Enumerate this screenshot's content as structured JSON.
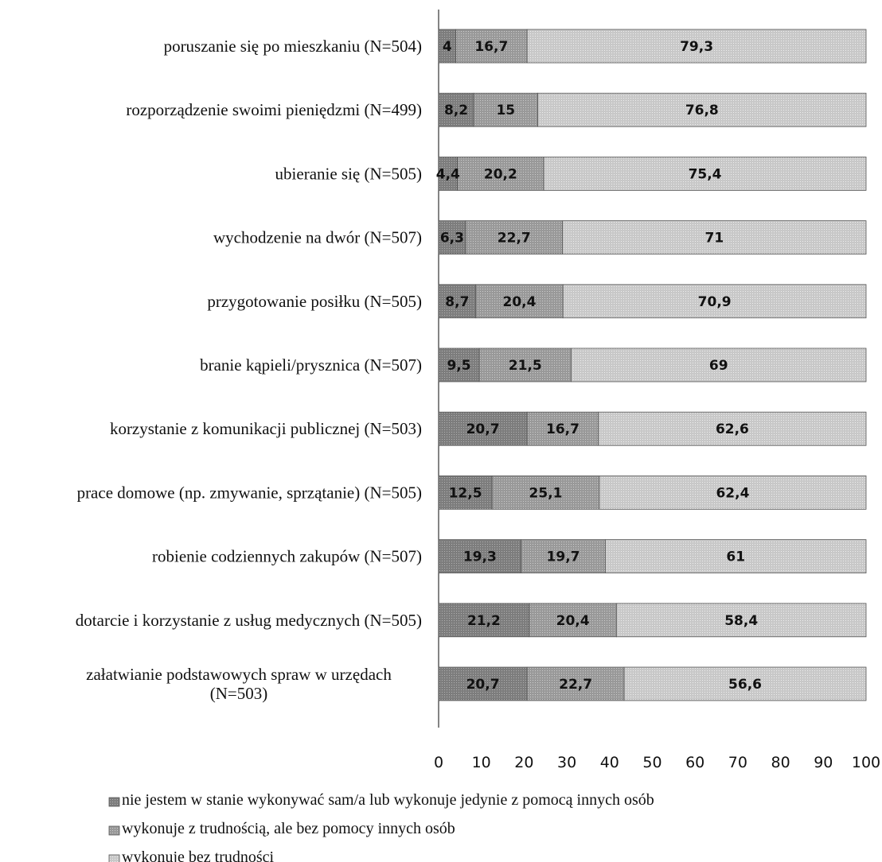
{
  "chart_data": {
    "type": "bar",
    "orientation": "horizontal",
    "stacked": true,
    "categories": [
      "poruszanie się po mieszkaniu (N=504)",
      "rozporządzenie swoimi pieniędzmi (N=499)",
      "ubieranie się (N=505)",
      "wychodzenie na dwór (N=507)",
      "przygotowanie posiłku (N=505)",
      "branie kąpieli/prysznica (N=507)",
      "korzystanie z komunikacji publicznej (N=503)",
      "prace domowe (np. zmywanie, sprzątanie) (N=505)",
      "robienie codziennych zakupów (N=507)",
      "dotarcie i korzystanie z usług medycznych (N=505)",
      "załatwianie podstawowych spraw w urzędach (N=503)"
    ],
    "category_lines": [
      [
        "poruszanie się po mieszkaniu (N=504)"
      ],
      [
        "rozporządzenie swoimi pieniędzmi (N=499)"
      ],
      [
        "ubieranie się (N=505)"
      ],
      [
        "wychodzenie na dwór (N=507)"
      ],
      [
        "przygotowanie posiłku (N=505)"
      ],
      [
        "branie kąpieli/prysznica (N=507)"
      ],
      [
        "korzystanie z komunikacji publicznej (N=503)"
      ],
      [
        "prace domowe (np. zmywanie, sprzątanie) (N=505)"
      ],
      [
        "robienie codziennych zakupów (N=507)"
      ],
      [
        "dotarcie i korzystanie z usług medycznych (N=505)"
      ],
      [
        "załatwianie podstawowych spraw w urzędach",
        "(N=503)"
      ]
    ],
    "series": [
      {
        "name": "nie jestem w stanie wykonywać sam/a lub wykonuje jedynie z pomocą innych osób",
        "color": "#8c8c8c",
        "values": [
          4,
          8.2,
          4.4,
          6.3,
          8.7,
          9.5,
          20.7,
          12.5,
          19.3,
          21.2,
          20.7
        ],
        "labels": [
          "4",
          "8,2",
          "4,4",
          "6,3",
          "8,7",
          "9,5",
          "20,7",
          "12,5",
          "19,3",
          "21,2",
          "20,7"
        ]
      },
      {
        "name": "wykonuje z trudnością, ale bez pomocy innych osób",
        "color": "#a6a6a6",
        "values": [
          16.7,
          15,
          20.2,
          22.7,
          20.4,
          21.5,
          16.7,
          25.1,
          19.7,
          20.4,
          22.7
        ],
        "labels": [
          "16,7",
          "15",
          "20,2",
          "22,7",
          "20,4",
          "21,5",
          "16,7",
          "25,1",
          "19,7",
          "20,4",
          "22,7"
        ]
      },
      {
        "name": "wykonuję bez trudności",
        "color": "#cfcfcf",
        "values": [
          79.3,
          76.8,
          75.4,
          71,
          70.9,
          69,
          62.6,
          62.4,
          61,
          58.4,
          56.6
        ],
        "labels": [
          "79,3",
          "76,8",
          "75,4",
          "71",
          "70,9",
          "69",
          "62,6",
          "62,4",
          "61",
          "58,4",
          "56,6"
        ]
      }
    ],
    "xlim": [
      0,
      100
    ],
    "xticks": [
      "0",
      "10",
      "20",
      "30",
      "40",
      "50",
      "60",
      "70",
      "80",
      "90",
      "100"
    ],
    "grid": false,
    "legend_position": "bottom"
  }
}
